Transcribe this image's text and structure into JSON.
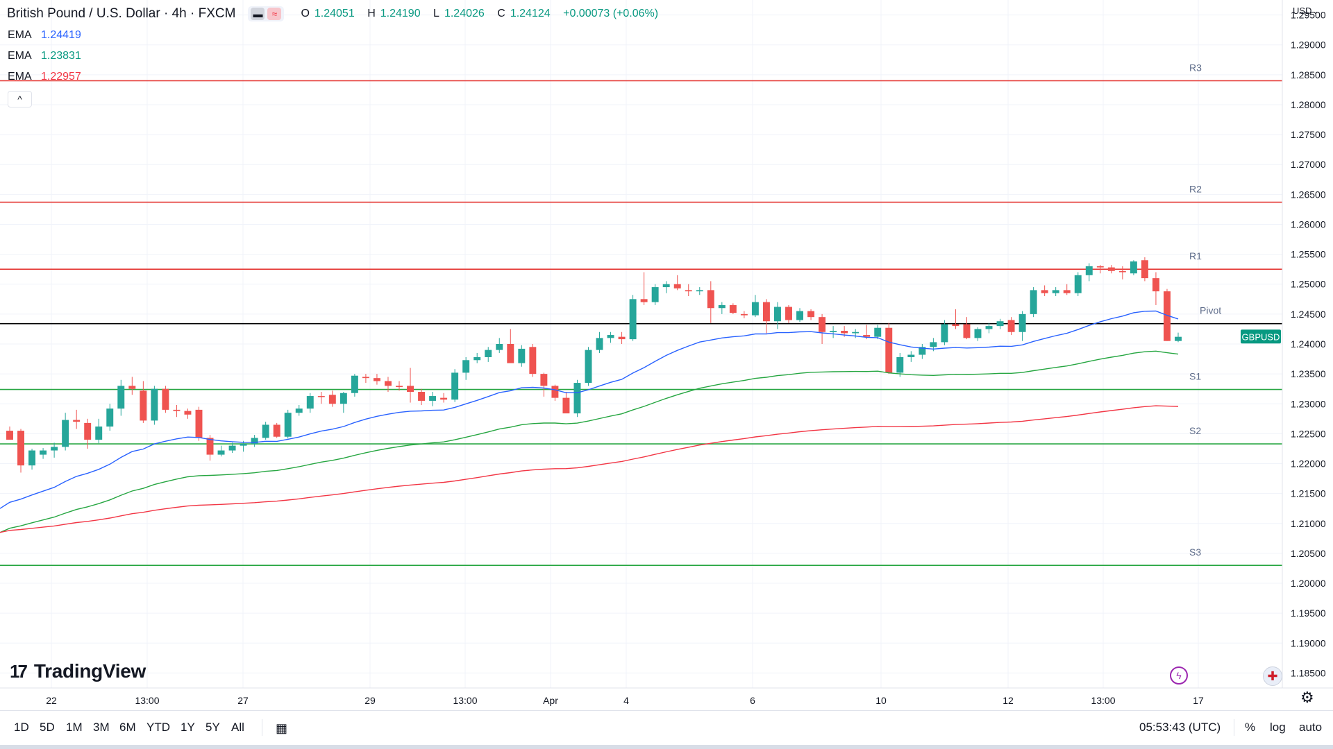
{
  "header": {
    "symbol_title": "British Pound / U.S. Dollar · 4h · FXCM",
    "toggle_icons": [
      "bar-style-icon",
      "compare-icon"
    ],
    "ohlc": {
      "o_label": "O",
      "o": "1.24051",
      "h_label": "H",
      "h": "1.24190",
      "l_label": "L",
      "l": "1.24026",
      "c_label": "C",
      "c": "1.24124",
      "change": "+0.00073 (+0.06%)"
    }
  },
  "indicators": [
    {
      "label": "EMA",
      "value": "1.24419",
      "color": "#2962ff"
    },
    {
      "label": "EMA",
      "value": "1.23831",
      "color": "#089981"
    },
    {
      "label": "EMA",
      "value": "1.22957",
      "color": "#f23645"
    }
  ],
  "price_axis": {
    "currency": "USD",
    "ticks": [
      "1.29500",
      "1.29000",
      "1.28500",
      "1.28000",
      "1.27500",
      "1.27000",
      "1.26500",
      "1.26000",
      "1.25500",
      "1.25000",
      "1.24500",
      "1.24000",
      "1.23500",
      "1.23000",
      "1.22500",
      "1.22000",
      "1.21500",
      "1.21000",
      "1.20500",
      "1.20000",
      "1.19500",
      "1.19000",
      "1.18500"
    ],
    "last_price_label": "GBPUSD"
  },
  "time_axis": {
    "labels": [
      "22",
      "13:00",
      "27",
      "29",
      "13:00",
      "Apr",
      "4",
      "6",
      "10",
      "12",
      "13:00",
      "17"
    ]
  },
  "chart_data": {
    "type": "candlestick",
    "symbol": "GBPUSD",
    "interval": "4h",
    "ylim": [
      1.1825,
      1.2975
    ],
    "levels": [
      {
        "name": "R3",
        "value": 1.284,
        "color": "#e53935"
      },
      {
        "name": "R2",
        "value": 1.2637,
        "color": "#e53935"
      },
      {
        "name": "R1",
        "value": 1.2525,
        "color": "#e53935"
      },
      {
        "name": "Pivot",
        "value": 1.2434,
        "color": "#000000"
      },
      {
        "name": "S1",
        "value": 1.2324,
        "color": "#26a641"
      },
      {
        "name": "S2",
        "value": 1.2233,
        "color": "#26a641"
      },
      {
        "name": "S3",
        "value": 1.203,
        "color": "#26a641"
      }
    ],
    "candles": [
      [
        1.2255,
        1.2262,
        1.224,
        1.224
      ],
      [
        1.2255,
        1.2258,
        1.2185,
        1.2197
      ],
      [
        1.2197,
        1.2225,
        1.219,
        1.2222
      ],
      [
        1.2215,
        1.2226,
        1.2208,
        1.2222
      ],
      [
        1.2222,
        1.2235,
        1.221,
        1.2228
      ],
      [
        1.2228,
        1.2285,
        1.2222,
        1.2273
      ],
      [
        1.2273,
        1.229,
        1.2258,
        1.227
      ],
      [
        1.2268,
        1.2275,
        1.2225,
        1.224
      ],
      [
        1.224,
        1.2275,
        1.2234,
        1.2262
      ],
      [
        1.2262,
        1.23,
        1.2255,
        1.2292
      ],
      [
        1.2292,
        1.234,
        1.228,
        1.233
      ],
      [
        1.233,
        1.2345,
        1.2315,
        1.2325
      ],
      [
        1.2322,
        1.2338,
        1.2268,
        1.2272
      ],
      [
        1.2272,
        1.233,
        1.2265,
        1.2325
      ],
      [
        1.2325,
        1.233,
        1.2285,
        1.229
      ],
      [
        1.229,
        1.2298,
        1.2278,
        1.2288
      ],
      [
        1.2288,
        1.2292,
        1.2275,
        1.2282
      ],
      [
        1.229,
        1.2295,
        1.2238,
        1.2243
      ],
      [
        1.2243,
        1.2248,
        1.2205,
        1.2215
      ],
      [
        1.2215,
        1.223,
        1.2212,
        1.2222
      ],
      [
        1.2222,
        1.2235,
        1.2218,
        1.223
      ],
      [
        1.223,
        1.2238,
        1.222,
        1.2233
      ],
      [
        1.2233,
        1.2248,
        1.2228,
        1.2243
      ],
      [
        1.2243,
        1.227,
        1.224,
        1.2265
      ],
      [
        1.2265,
        1.2268,
        1.2243,
        1.2245
      ],
      [
        1.2245,
        1.229,
        1.2242,
        1.2285
      ],
      [
        1.2285,
        1.2298,
        1.228,
        1.2292
      ],
      [
        1.2292,
        1.2318,
        1.2285,
        1.2313
      ],
      [
        1.2313,
        1.232,
        1.23,
        1.2312
      ],
      [
        1.2315,
        1.2322,
        1.2295,
        1.23
      ],
      [
        1.23,
        1.232,
        1.2285,
        1.2318
      ],
      [
        1.2318,
        1.235,
        1.2312,
        1.2347
      ],
      [
        1.2345,
        1.235,
        1.2335,
        1.2343
      ],
      [
        1.2343,
        1.235,
        1.2332,
        1.2338
      ],
      [
        1.2338,
        1.2345,
        1.232,
        1.233
      ],
      [
        1.233,
        1.2338,
        1.2322,
        1.2328
      ],
      [
        1.233,
        1.236,
        1.2302,
        1.232
      ],
      [
        1.232,
        1.2325,
        1.2298,
        1.2305
      ],
      [
        1.2305,
        1.232,
        1.2296,
        1.2313
      ],
      [
        1.231,
        1.2318,
        1.2302,
        1.2307
      ],
      [
        1.2307,
        1.2358,
        1.2303,
        1.2352
      ],
      [
        1.2352,
        1.2378,
        1.234,
        1.2373
      ],
      [
        1.2373,
        1.2385,
        1.2368,
        1.2378
      ],
      [
        1.2378,
        1.2395,
        1.237,
        1.239
      ],
      [
        1.239,
        1.241,
        1.2385,
        1.24
      ],
      [
        1.24,
        1.2425,
        1.2378,
        1.2368
      ],
      [
        1.2368,
        1.2398,
        1.2362,
        1.2392
      ],
      [
        1.2395,
        1.24,
        1.2345,
        1.235
      ],
      [
        1.235,
        1.2352,
        1.2312,
        1.233
      ],
      [
        1.233,
        1.2332,
        1.2305,
        1.231
      ],
      [
        1.231,
        1.232,
        1.229,
        1.2284
      ],
      [
        1.2284,
        1.234,
        1.2278,
        1.2335
      ],
      [
        1.2335,
        1.2395,
        1.233,
        1.239
      ],
      [
        1.239,
        1.242,
        1.2385,
        1.241
      ],
      [
        1.241,
        1.242,
        1.2402,
        1.2415
      ],
      [
        1.2412,
        1.242,
        1.24,
        1.2408
      ],
      [
        1.2408,
        1.2482,
        1.2405,
        1.2475
      ],
      [
        1.2475,
        1.252,
        1.2465,
        1.247
      ],
      [
        1.247,
        1.25,
        1.2465,
        1.2495
      ],
      [
        1.2495,
        1.2505,
        1.2485,
        1.25
      ],
      [
        1.25,
        1.2515,
        1.249,
        1.2493
      ],
      [
        1.249,
        1.25,
        1.248,
        1.2488
      ],
      [
        1.2488,
        1.2495,
        1.2482,
        1.249
      ],
      [
        1.249,
        1.2505,
        1.2435,
        1.246
      ],
      [
        1.246,
        1.247,
        1.245,
        1.2465
      ],
      [
        1.2465,
        1.2468,
        1.245,
        1.2452
      ],
      [
        1.245,
        1.2455,
        1.2443,
        1.2448
      ],
      [
        1.2448,
        1.2482,
        1.2445,
        1.247
      ],
      [
        1.247,
        1.2475,
        1.2418,
        1.2438
      ],
      [
        1.2438,
        1.247,
        1.2425,
        1.2462
      ],
      [
        1.2462,
        1.2465,
        1.2435,
        1.244
      ],
      [
        1.244,
        1.246,
        1.2437,
        1.2455
      ],
      [
        1.2455,
        1.2458,
        1.244,
        1.2445
      ],
      [
        1.2445,
        1.245,
        1.24,
        1.242
      ],
      [
        1.242,
        1.243,
        1.241,
        1.2422
      ],
      [
        1.2422,
        1.243,
        1.2412,
        1.2418
      ],
      [
        1.2418,
        1.2425,
        1.241,
        1.242
      ],
      [
        1.2415,
        1.2432,
        1.2408,
        1.2412
      ],
      [
        1.2412,
        1.2432,
        1.2408,
        1.2427
      ],
      [
        1.2427,
        1.2435,
        1.235,
        1.2352
      ],
      [
        1.2352,
        1.2385,
        1.2345,
        1.2378
      ],
      [
        1.2378,
        1.2388,
        1.237,
        1.2382
      ],
      [
        1.2382,
        1.24,
        1.2375,
        1.2395
      ],
      [
        1.2395,
        1.241,
        1.2388,
        1.2403
      ],
      [
        1.2403,
        1.244,
        1.2398,
        1.2433
      ],
      [
        1.2433,
        1.2458,
        1.2425,
        1.243
      ],
      [
        1.2433,
        1.2445,
        1.2408,
        1.241
      ],
      [
        1.241,
        1.2428,
        1.2405,
        1.2425
      ],
      [
        1.2425,
        1.2435,
        1.2418,
        1.243
      ],
      [
        1.243,
        1.2442,
        1.2425,
        1.2438
      ],
      [
        1.244,
        1.2445,
        1.2415,
        1.242
      ],
      [
        1.242,
        1.2455,
        1.2405,
        1.245
      ],
      [
        1.245,
        1.2495,
        1.2445,
        1.249
      ],
      [
        1.249,
        1.2498,
        1.248,
        1.2485
      ],
      [
        1.2485,
        1.2495,
        1.248,
        1.249
      ],
      [
        1.249,
        1.25,
        1.2482,
        1.2485
      ],
      [
        1.2485,
        1.252,
        1.248,
        1.2515
      ],
      [
        1.2515,
        1.2535,
        1.2505,
        1.253
      ],
      [
        1.253,
        1.2532,
        1.2518,
        1.2528
      ],
      [
        1.2528,
        1.2532,
        1.2518,
        1.2522
      ],
      [
        1.2522,
        1.253,
        1.2508,
        1.252
      ],
      [
        1.2518,
        1.254,
        1.2515,
        1.2538
      ],
      [
        1.254,
        1.2545,
        1.2505,
        1.251
      ],
      [
        1.251,
        1.252,
        1.2465,
        1.2488
      ],
      [
        1.2488,
        1.2492,
        1.2405,
        1.2405
      ],
      [
        1.2405,
        1.2419,
        1.2403,
        1.2412
      ]
    ],
    "ema_series": [
      {
        "label": "EMA",
        "color": "#2962ff",
        "start": 1.2125,
        "end": 1.24419
      },
      {
        "label": "EMA",
        "color": "#26a641",
        "start": 1.2085,
        "end": 1.23831
      },
      {
        "label": "EMA",
        "color": "#f23645",
        "start": 1.2085,
        "end": 1.22957
      }
    ],
    "last_price": 1.24124,
    "bull_color": "#26a69a",
    "bear_color": "#ef5350"
  },
  "branding": {
    "logo_text": "TradingView",
    "logo_mark": "17"
  },
  "bottom_bar": {
    "ranges": [
      "1D",
      "5D",
      "1M",
      "3M",
      "6M",
      "YTD",
      "1Y",
      "5Y",
      "All"
    ],
    "clock": "05:53:43 (UTC)",
    "percent": "%",
    "log": "log",
    "auto": "auto"
  },
  "colors": {
    "axis_text": "#131722",
    "grid": "#f0f3fa",
    "border": "#e0e3eb",
    "accent_label": "#089981"
  }
}
